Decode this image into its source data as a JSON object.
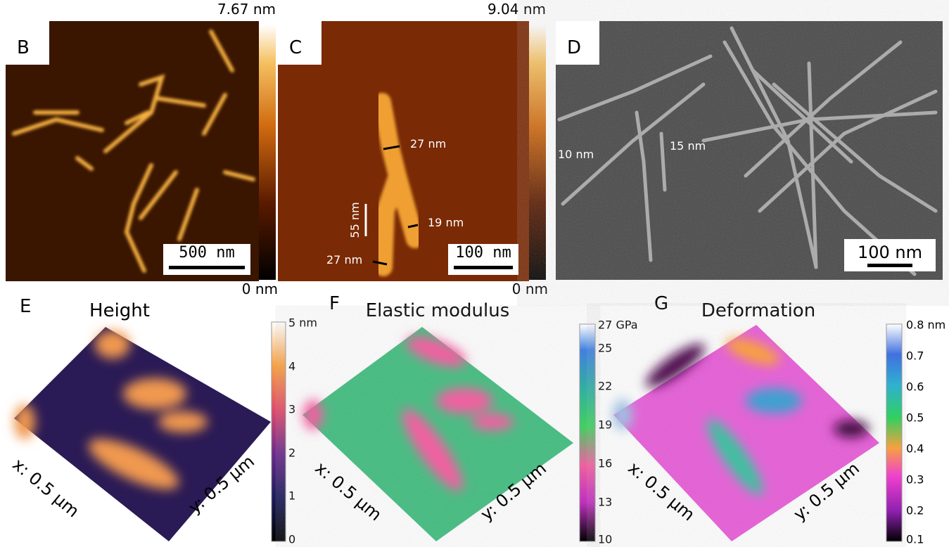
{
  "panels": [
    {
      "label": "B",
      "colorbar": {
        "max": "7.67 nm",
        "min": "0 nm"
      },
      "scale_bar": "500 nm"
    },
    {
      "label": "C",
      "colorbar": {
        "max": "9.04 nm",
        "min": "0 nm"
      },
      "scale_bar": "100 nm",
      "annotations": [
        "27 nm",
        "19 nm",
        "27 nm",
        "55 nm"
      ]
    },
    {
      "label": "D",
      "scale_bar": "100 nm",
      "annotations": [
        "10 nm",
        "15 nm"
      ]
    },
    {
      "label": "E",
      "title": "Height",
      "colorbar_ticks": [
        "5 nm",
        "4",
        "3",
        "2",
        "1",
        "0"
      ],
      "x_axis": "x: 0.5 μm",
      "y_axis": "y: 0.5 μm"
    },
    {
      "label": "F",
      "title": "Elastic modulus",
      "colorbar_ticks": [
        "27 GPa",
        "25",
        "22",
        "19",
        "16",
        "13",
        "10"
      ],
      "x_axis": "x: 0.5 μm",
      "y_axis": "y: 0.5 μm"
    },
    {
      "label": "G",
      "title": "Deformation",
      "colorbar_ticks": [
        "0.8 nm",
        "0.7",
        "0.6",
        "0.5",
        "0.4",
        "0.3",
        "0.2",
        "0.1"
      ],
      "x_axis": "x: 0.5 μm",
      "y_axis": "y: 0.5 μm"
    }
  ]
}
